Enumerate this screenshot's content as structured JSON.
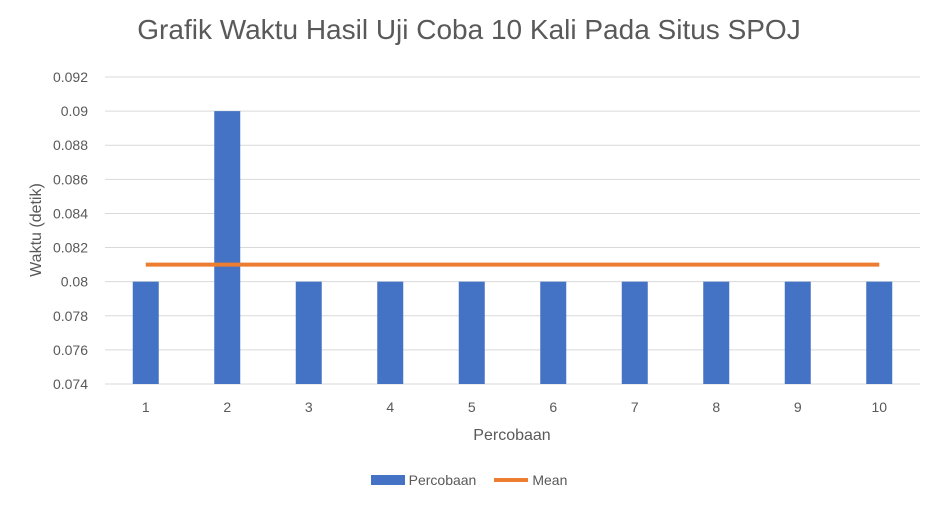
{
  "chart_data": {
    "type": "bar",
    "title": "Grafik Waktu Hasil Uji Coba 10 Kali Pada Situs SPOJ",
    "xlabel": "Percobaan",
    "ylabel": "Waktu (detik)",
    "categories": [
      "1",
      "2",
      "3",
      "4",
      "5",
      "6",
      "7",
      "8",
      "9",
      "10"
    ],
    "series": [
      {
        "name": "Percobaan",
        "type": "bar",
        "color": "#4472C4",
        "values": [
          0.08,
          0.09,
          0.08,
          0.08,
          0.08,
          0.08,
          0.08,
          0.08,
          0.08,
          0.08
        ]
      },
      {
        "name": "Mean",
        "type": "line",
        "color": "#ED7D31",
        "values": [
          0.081,
          0.081,
          0.081,
          0.081,
          0.081,
          0.081,
          0.081,
          0.081,
          0.081,
          0.081
        ]
      }
    ],
    "ylim": [
      0.074,
      0.092
    ],
    "yticks": [
      "0.074",
      "0.076",
      "0.078",
      "0.08",
      "0.082",
      "0.084",
      "0.086",
      "0.088",
      "0.09",
      "0.092"
    ],
    "grid": true,
    "legend_position": "bottom"
  }
}
